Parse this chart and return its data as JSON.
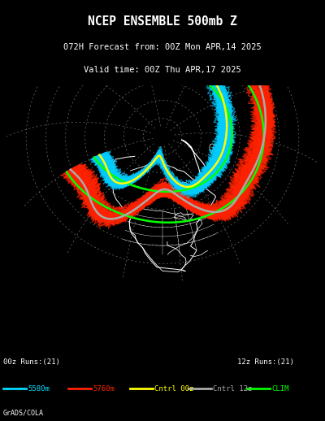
{
  "title_line1": "NCEP ENSEMBLE 500mb Z",
  "title_line2": "072H Forecast from: 00Z Mon APR,14 2025",
  "title_line3": "Valid time: 00Z Thu APR,17 2025",
  "label_left": "00z Runs:(21)",
  "label_right": "12z Runs:(21)",
  "credit": "GrADS/COLA",
  "bg_color": "#000000",
  "map_border_color": "#ffffff",
  "grid_color": "#888888",
  "legend": [
    {
      "label": "5580m",
      "color": "#00ddff",
      "lw": 2.0
    },
    {
      "label": "5760m",
      "color": "#ff2200",
      "lw": 2.0
    },
    {
      "label": "Cntrl 00z",
      "color": "#ffff00",
      "lw": 2.0
    },
    {
      "label": "Cntrl 12z",
      "color": "#aaaaaa",
      "lw": 2.0
    },
    {
      "label": "CLIM",
      "color": "#00ff00",
      "lw": 2.0
    }
  ],
  "cyan_color": "#00ccff",
  "red_color": "#ff2200",
  "yellow_color": "#ffff00",
  "gray_color": "#aaaaaa",
  "green_color": "#00ff00",
  "figsize": [
    4.0,
    5.18
  ],
  "dpi": 100
}
